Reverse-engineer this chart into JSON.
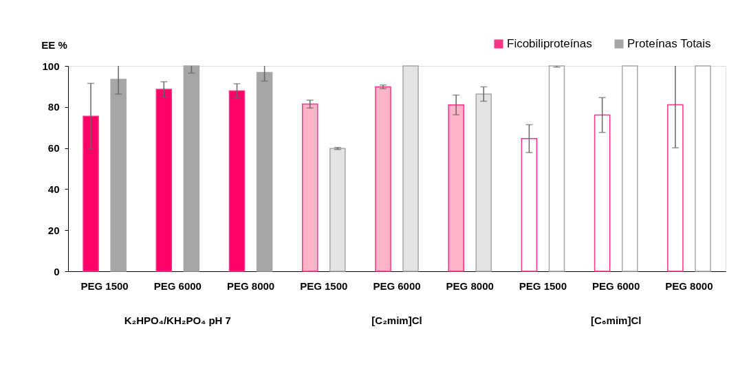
{
  "chart_data": {
    "type": "bar",
    "ylabel": "EE %",
    "categories": [
      "PEG 1500",
      "PEG 6000",
      "PEG 8000",
      "PEG 1500",
      "PEG 6000",
      "PEG 8000",
      "PEG 1500",
      "PEG 6000",
      "PEG 8000"
    ],
    "series": [
      {
        "name": "Ficobiliproteínas",
        "color": "#ff3385",
        "colors": [
          "#ff0066",
          "#ff0066",
          "#ff0066",
          "#ffb3c9",
          "#ffb3c9",
          "#ffb3c9",
          "#ffffff",
          "#ffffff",
          "#ffffff"
        ],
        "values": [
          75.5,
          88.6,
          87.9,
          81.4,
          89.8,
          81.0,
          64.6,
          76.1,
          81.1
        ],
        "errors": [
          16,
          3.7,
          3.4,
          1.9,
          0.9,
          4.8,
          6.8,
          8.5,
          21
        ]
      },
      {
        "name": "Proteínas Totais",
        "color": "#a6a6a6",
        "colors": [
          "#a6a6a6",
          "#a6a6a6",
          "#a6a6a6",
          "#e3e3e3",
          "#e3e3e3",
          "#e3e3e3",
          "#ffffff",
          "#ffffff",
          "#ffffff"
        ],
        "values": [
          93.5,
          100,
          96.8,
          59.8,
          100,
          86.3,
          100,
          100,
          100
        ],
        "errors": [
          7.2,
          3.5,
          4.2,
          0.5,
          null,
          3.5,
          0.6,
          null,
          null
        ]
      }
    ],
    "annotations": [
      "K₂HPO₄/KH₂PO₄  pH 7",
      "[C₂mim]Cl",
      "[C₆mim]Cl"
    ],
    "ylim": [
      0,
      100
    ],
    "yticks": [
      0,
      20,
      40,
      60,
      80,
      100
    ],
    "grid": false,
    "legend": "top right"
  }
}
